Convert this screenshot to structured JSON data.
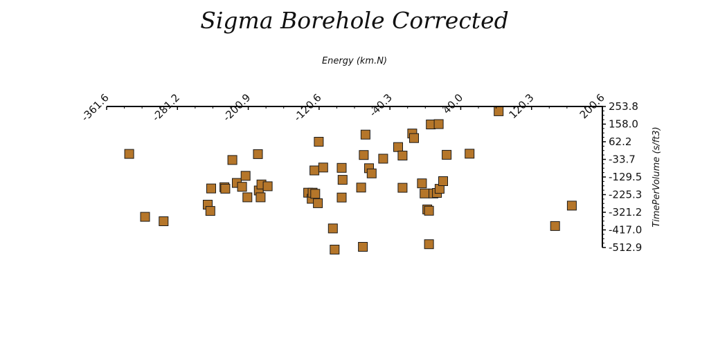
{
  "chart_data": {
    "type": "scatter",
    "title": "Sigma Borehole Corrected",
    "xlabel": "Energy (km.N)",
    "ylabel": "TimePerVolume (s/ft3)",
    "x_axis_position": "top",
    "y_axis_position": "right",
    "xlim": [
      -361.6,
      200.6
    ],
    "ylim": [
      -512.9,
      253.8
    ],
    "x_ticks": [
      "-361.6",
      "-281.2",
      "-200.9",
      "-120.6",
      "-40.3",
      "40.0",
      "120.3",
      "200.6"
    ],
    "y_ticks": [
      "253.8",
      "158.0",
      "62.2",
      "-33.7",
      "-129.5",
      "-225.3",
      "-321.2",
      "-417.0",
      "-512.9"
    ],
    "grid": false,
    "legend": "none",
    "marker": "square",
    "marker_color": "#b5762a",
    "marker_edge_color": "#1a1a1a",
    "points": [
      {
        "x": 83,
        "y": 228
      },
      {
        "x": -336,
        "y": -4
      },
      {
        "x": -318,
        "y": -346
      },
      {
        "x": -297,
        "y": -370
      },
      {
        "x": -247,
        "y": -280
      },
      {
        "x": -244,
        "y": -314
      },
      {
        "x": -243,
        "y": -192
      },
      {
        "x": -228,
        "y": -185
      },
      {
        "x": -227,
        "y": -193
      },
      {
        "x": -219,
        "y": -37
      },
      {
        "x": -214,
        "y": -162
      },
      {
        "x": -208,
        "y": -183
      },
      {
        "x": -204,
        "y": -123
      },
      {
        "x": -202,
        "y": -240
      },
      {
        "x": -190,
        "y": -5
      },
      {
        "x": -189,
        "y": -203
      },
      {
        "x": -187,
        "y": -240
      },
      {
        "x": -186,
        "y": -170
      },
      {
        "x": -179,
        "y": -180
      },
      {
        "x": -133,
        "y": -215
      },
      {
        "x": -129,
        "y": -248
      },
      {
        "x": -128,
        "y": -215
      },
      {
        "x": -126,
        "y": -94
      },
      {
        "x": -125,
        "y": -221
      },
      {
        "x": -122,
        "y": -272
      },
      {
        "x": -121,
        "y": 62
      },
      {
        "x": -116,
        "y": -78
      },
      {
        "x": -105,
        "y": -409
      },
      {
        "x": -103,
        "y": -524
      },
      {
        "x": -95,
        "y": -80
      },
      {
        "x": -95,
        "y": -241
      },
      {
        "x": -94,
        "y": -145
      },
      {
        "x": -73,
        "y": -187
      },
      {
        "x": -71,
        "y": -509
      },
      {
        "x": -70,
        "y": -10
      },
      {
        "x": -68,
        "y": 101
      },
      {
        "x": -64,
        "y": -82
      },
      {
        "x": -61,
        "y": -110
      },
      {
        "x": -48,
        "y": -30
      },
      {
        "x": -31,
        "y": 33
      },
      {
        "x": -26,
        "y": -13
      },
      {
        "x": -26,
        "y": -188
      },
      {
        "x": -15,
        "y": 107
      },
      {
        "x": -13,
        "y": 82
      },
      {
        "x": -4,
        "y": -164
      },
      {
        "x": -1,
        "y": -219
      },
      {
        "x": 2,
        "y": -306
      },
      {
        "x": 4,
        "y": -313
      },
      {
        "x": 4,
        "y": -495
      },
      {
        "x": 6,
        "y": 156
      },
      {
        "x": 9,
        "y": -219
      },
      {
        "x": 13,
        "y": -216
      },
      {
        "x": 15,
        "y": 158
      },
      {
        "x": 16,
        "y": -194
      },
      {
        "x": 20,
        "y": -152
      },
      {
        "x": 24,
        "y": -9
      },
      {
        "x": 50,
        "y": -3
      },
      {
        "x": 147,
        "y": -396
      },
      {
        "x": 166,
        "y": -285
      }
    ]
  }
}
